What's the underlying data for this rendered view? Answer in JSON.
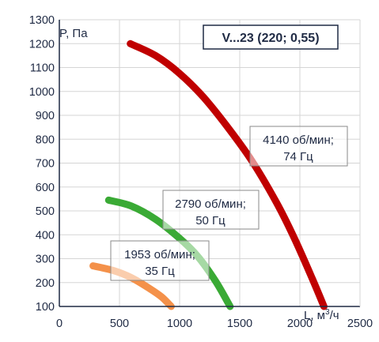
{
  "chart_data": {
    "type": "line",
    "title": "V...23 (220; 0,55)",
    "ylabel": "P, Па",
    "xlabel_prefix": "L, м",
    "xlabel_sup": "3",
    "xlabel_suffix": "/ч",
    "xlim": [
      0,
      2500
    ],
    "ylim": [
      100,
      1300
    ],
    "x_ticks": [
      0,
      500,
      1000,
      1500,
      2000,
      2500
    ],
    "y_ticks": [
      100,
      200,
      300,
      400,
      500,
      600,
      700,
      800,
      900,
      1000,
      1100,
      1200,
      1300
    ],
    "grid": true,
    "series": [
      {
        "color": "#c00000",
        "label_lines": [
          "4140 об/мин;",
          "74 Гц"
        ],
        "x": [
          590,
          800,
          1000,
          1200,
          1400,
          1600,
          1800,
          1950,
          2100,
          2200
        ],
        "y": [
          1200,
          1150,
          1075,
          975,
          850,
          710,
          540,
          390,
          220,
          100
        ]
      },
      {
        "color": "#3aaa35",
        "label_lines": [
          "2790 об/мин;",
          "50 Гц"
        ],
        "x": [
          410,
          600,
          800,
          1000,
          1150,
          1300,
          1420
        ],
        "y": [
          545,
          520,
          465,
          385,
          310,
          205,
          100
        ]
      },
      {
        "color": "#f4914a",
        "label_lines": [
          "1953 об/мин;",
          "35 Гц"
        ],
        "x": [
          280,
          450,
          600,
          750,
          850,
          930
        ],
        "y": [
          270,
          250,
          220,
          175,
          140,
          100
        ]
      }
    ]
  }
}
